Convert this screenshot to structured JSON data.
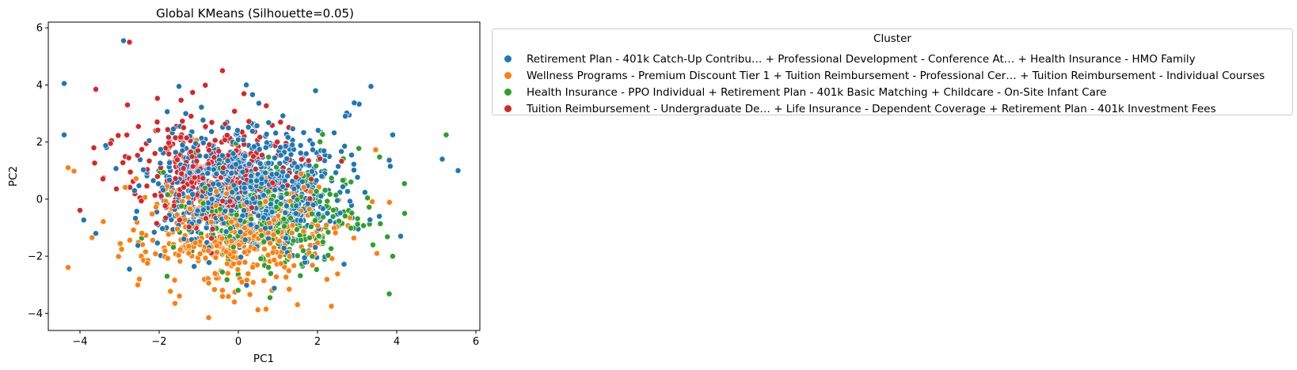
{
  "chart_data": {
    "type": "scatter",
    "title": "Global KMeans (Silhouette=0.05)",
    "xlabel": "PC1",
    "ylabel": "PC2",
    "xlim": [
      -4.8,
      6.1
    ],
    "ylim": [
      -4.6,
      6.2
    ],
    "xticks": [
      -4,
      -2,
      0,
      2,
      4,
      6
    ],
    "yticks": [
      -4,
      -2,
      0,
      2,
      4,
      6
    ],
    "grid": false,
    "legend_title": "Cluster",
    "legend_position": "outside-right-top",
    "series": [
      {
        "name": "Retirement Plan - 401k Catch-Up Contribu… + Professional Development - Conference At… + Health Insurance - HMO Family",
        "color": "#1f77b4",
        "center": [
          0.2,
          0.4
        ],
        "spread": [
          1.15,
          1.05
        ],
        "count": 900,
        "outliers": [
          [
            -2.9,
            5.55
          ],
          [
            -4.4,
            4.05
          ],
          [
            -4.4,
            2.25
          ],
          [
            5.55,
            1.0
          ],
          [
            5.15,
            1.4
          ],
          [
            4.1,
            -1.3
          ],
          [
            -3.6,
            -1.2
          ],
          [
            0.2,
            4.0
          ],
          [
            3.35,
            3.95
          ],
          [
            1.95,
            3.8
          ],
          [
            2.8,
            2.95
          ],
          [
            3.9,
            2.25
          ],
          [
            -1.5,
            3.95
          ],
          [
            -2.75,
            -2.45
          ]
        ]
      },
      {
        "name": "Wellness Programs - Premium Discount Tier 1 + Tuition Reimbursement - Professional Cer… + Tuition Reimbursement - Individual Courses",
        "color": "#ff7f0e",
        "center": [
          0.0,
          -1.1
        ],
        "spread": [
          1.2,
          0.95
        ],
        "count": 450,
        "outliers": [
          [
            -0.75,
            -4.15
          ],
          [
            0.7,
            -3.85
          ],
          [
            2.35,
            -3.75
          ],
          [
            -1.6,
            -3.65
          ],
          [
            -0.1,
            -3.6
          ],
          [
            -4.15,
            0.98
          ],
          [
            3.5,
            -1.9
          ],
          [
            0.85,
            -3.2
          ],
          [
            -2.5,
            -2.8
          ]
        ]
      },
      {
        "name": "Health Insurance - PPO Individual + Retirement Plan - 401k Basic Matching + Childcare - On-Site Infant Care",
        "color": "#2ca02c",
        "center": [
          0.9,
          -0.5
        ],
        "spread": [
          1.15,
          0.95
        ],
        "count": 340,
        "outliers": [
          [
            5.25,
            2.25
          ],
          [
            4.2,
            -0.5
          ],
          [
            3.9,
            -2.0
          ],
          [
            3.4,
            -1.6
          ],
          [
            0.8,
            -3.45
          ],
          [
            -1.8,
            -2.7
          ]
        ]
      },
      {
        "name": "Tuition Reimbursement - Undergraduate De… + Life Insurance - Dependent Coverage + Retirement Plan - 401k Investment Fees",
        "color": "#d62728",
        "center": [
          -0.6,
          1.0
        ],
        "spread": [
          1.1,
          0.95
        ],
        "count": 380,
        "outliers": [
          [
            -2.75,
            5.5
          ],
          [
            -0.4,
            4.5
          ],
          [
            -3.6,
            3.85
          ],
          [
            -3.65,
            1.8
          ],
          [
            -3.2,
            2.05
          ],
          [
            -2.8,
            3.3
          ]
        ]
      }
    ]
  }
}
